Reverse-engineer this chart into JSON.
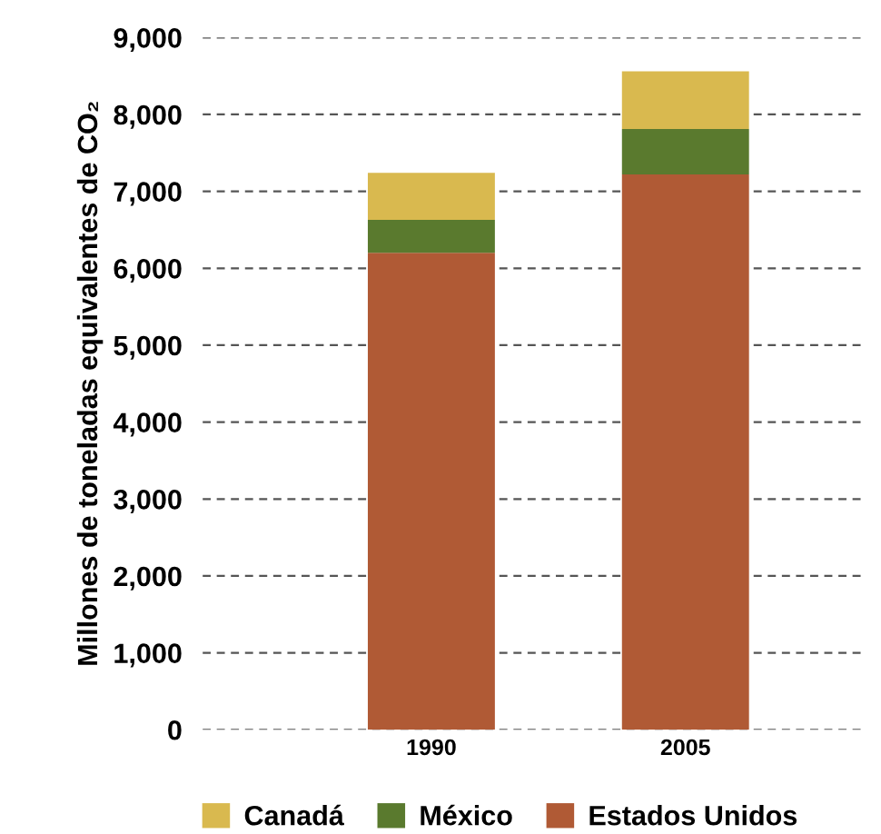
{
  "chart_data": {
    "type": "bar",
    "stacked": true,
    "ylabel": "Millones de toneladas equivalentes de CO₂",
    "categories": [
      "1990",
      "2005"
    ],
    "series": [
      {
        "name": "Estados Unidos",
        "color": "#b05a35",
        "values": [
          6200,
          7220
        ]
      },
      {
        "name": "México",
        "color": "#5a7a2e",
        "values": [
          430,
          590
        ]
      },
      {
        "name": "Canadá",
        "color": "#d9b94f",
        "values": [
          610,
          750
        ]
      }
    ],
    "ylim": [
      0,
      9000
    ],
    "yticks": [
      {
        "value": 0,
        "label": "0"
      },
      {
        "value": 1000,
        "label": "1,000"
      },
      {
        "value": 2000,
        "label": "2,000"
      },
      {
        "value": 3000,
        "label": "3,000"
      },
      {
        "value": 4000,
        "label": "4,000"
      },
      {
        "value": 5000,
        "label": "5,000"
      },
      {
        "value": 6000,
        "label": "6,000"
      },
      {
        "value": 7000,
        "label": "7,000"
      },
      {
        "value": 8000,
        "label": "8,000"
      },
      {
        "value": 9000,
        "label": "9,000"
      }
    ],
    "grid": "y",
    "legend": "bottom"
  }
}
